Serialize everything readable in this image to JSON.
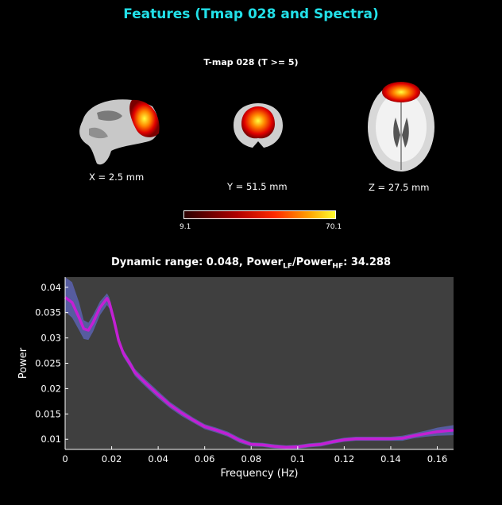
{
  "header": {
    "title": "Features (Tmap 028 and Spectra)"
  },
  "tmap": {
    "title": "T-map 028 (T >= 5)",
    "slices": [
      {
        "view": "sagittal",
        "label": "X = 2.5 mm"
      },
      {
        "view": "coronal",
        "label": "Y = 51.5 mm"
      },
      {
        "view": "axial",
        "label": "Z = 27.5 mm"
      }
    ],
    "colorbar": {
      "min": "9.1",
      "max": "70.1",
      "colormap": "hot"
    }
  },
  "spectrum": {
    "title_prefix": "Dynamic range: 0.048, Power",
    "lf_sub": "LF",
    "slash": "/Power",
    "hf_sub": "HF",
    "title_suffix": ": 34.288"
  },
  "colors": {
    "title": "#22e0e8",
    "mean_line": "#c41fd4",
    "band": "#5a62b0",
    "plot_bg": "#3f3f3f"
  },
  "chart_data": {
    "type": "line",
    "xlabel": "Frequency (Hz)",
    "ylabel": "Power",
    "xlim": [
      0,
      0.167
    ],
    "ylim": [
      0.008,
      0.042
    ],
    "xticks": [
      0,
      0.02,
      0.04,
      0.06,
      0.08,
      0.1,
      0.12,
      0.14,
      0.16
    ],
    "xtick_labels": [
      "0",
      "0.02",
      "0.04",
      "0.06",
      "0.08",
      "0.1",
      "0.12",
      "0.14",
      "0.16"
    ],
    "yticks": [
      0.01,
      0.015,
      0.02,
      0.025,
      0.03,
      0.035,
      0.04
    ],
    "ytick_labels": [
      "0.01",
      "0.015",
      "0.02",
      "0.025",
      "0.03",
      "0.035",
      "0.04"
    ],
    "grid": false,
    "x": [
      0,
      0.003,
      0.006,
      0.008,
      0.01,
      0.012,
      0.015,
      0.018,
      0.019,
      0.021,
      0.023,
      0.025,
      0.028,
      0.03,
      0.033,
      0.036,
      0.04,
      0.045,
      0.05,
      0.055,
      0.06,
      0.065,
      0.07,
      0.075,
      0.08,
      0.085,
      0.09,
      0.095,
      0.1,
      0.105,
      0.11,
      0.115,
      0.12,
      0.125,
      0.13,
      0.135,
      0.14,
      0.145,
      0.15,
      0.155,
      0.16,
      0.167
    ],
    "series": [
      {
        "role": "mean",
        "values": [
          0.038,
          0.037,
          0.034,
          0.0318,
          0.0315,
          0.033,
          0.036,
          0.0378,
          0.037,
          0.0335,
          0.0295,
          0.027,
          0.0248,
          0.0232,
          0.0218,
          0.0205,
          0.0188,
          0.0168,
          0.0152,
          0.0138,
          0.0125,
          0.0118,
          0.011,
          0.0098,
          0.009,
          0.0089,
          0.0086,
          0.0084,
          0.0085,
          0.0088,
          0.009,
          0.0095,
          0.0099,
          0.0101,
          0.0101,
          0.0101,
          0.0101,
          0.0102,
          0.0107,
          0.0111,
          0.0115,
          0.0118
        ]
      },
      {
        "role": "upper",
        "values": [
          0.042,
          0.041,
          0.037,
          0.0335,
          0.033,
          0.0345,
          0.0372,
          0.0388,
          0.038,
          0.0345,
          0.0303,
          0.0277,
          0.0255,
          0.0239,
          0.0225,
          0.0212,
          0.0195,
          0.0174,
          0.0158,
          0.0143,
          0.013,
          0.0123,
          0.0115,
          0.0103,
          0.0094,
          0.0093,
          0.009,
          0.0088,
          0.0089,
          0.0092,
          0.0094,
          0.0099,
          0.0103,
          0.0105,
          0.0105,
          0.0105,
          0.0105,
          0.0107,
          0.0112,
          0.0117,
          0.0123,
          0.0128
        ]
      },
      {
        "role": "lower",
        "values": [
          0.0352,
          0.034,
          0.0315,
          0.0298,
          0.0296,
          0.0312,
          0.0345,
          0.0365,
          0.0358,
          0.0325,
          0.0287,
          0.0263,
          0.0241,
          0.0225,
          0.0211,
          0.0198,
          0.0181,
          0.0162,
          0.0146,
          0.0133,
          0.012,
          0.0113,
          0.0105,
          0.0093,
          0.0086,
          0.0085,
          0.0082,
          0.0081,
          0.0081,
          0.0084,
          0.0086,
          0.0091,
          0.0095,
          0.0097,
          0.0097,
          0.0097,
          0.0097,
          0.0097,
          0.0102,
          0.0105,
          0.0107,
          0.0108
        ]
      }
    ]
  }
}
